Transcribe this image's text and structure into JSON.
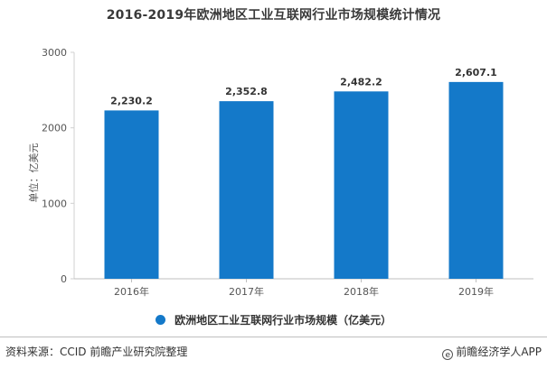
{
  "chart_data": {
    "type": "bar",
    "title": "2016-2019年欧洲地区工业互联网行业市场规模统计情况",
    "categories": [
      "2016年",
      "2017年",
      "2018年",
      "2019年"
    ],
    "series": [
      {
        "name": "欧洲地区工业互联网行业市场规模（亿美元）",
        "values": [
          2230.2,
          2352.8,
          2482.2,
          2607.1
        ],
        "labels": [
          "2,230.2",
          "2,352.8",
          "2,482.2",
          "2,607.1"
        ]
      }
    ],
    "ylabel": "单位：亿美元",
    "ylim": [
      0,
      3000
    ],
    "yticks": [
      0,
      1000,
      2000,
      3000
    ],
    "grid": false,
    "legend_position": "bottom",
    "bar_color": "#1479c9"
  },
  "footer": {
    "source": "资料来源：CCID 前瞻产业研究院整理",
    "brand": "前瞻经济学人APP",
    "brand_icon": "e-logo-icon"
  }
}
